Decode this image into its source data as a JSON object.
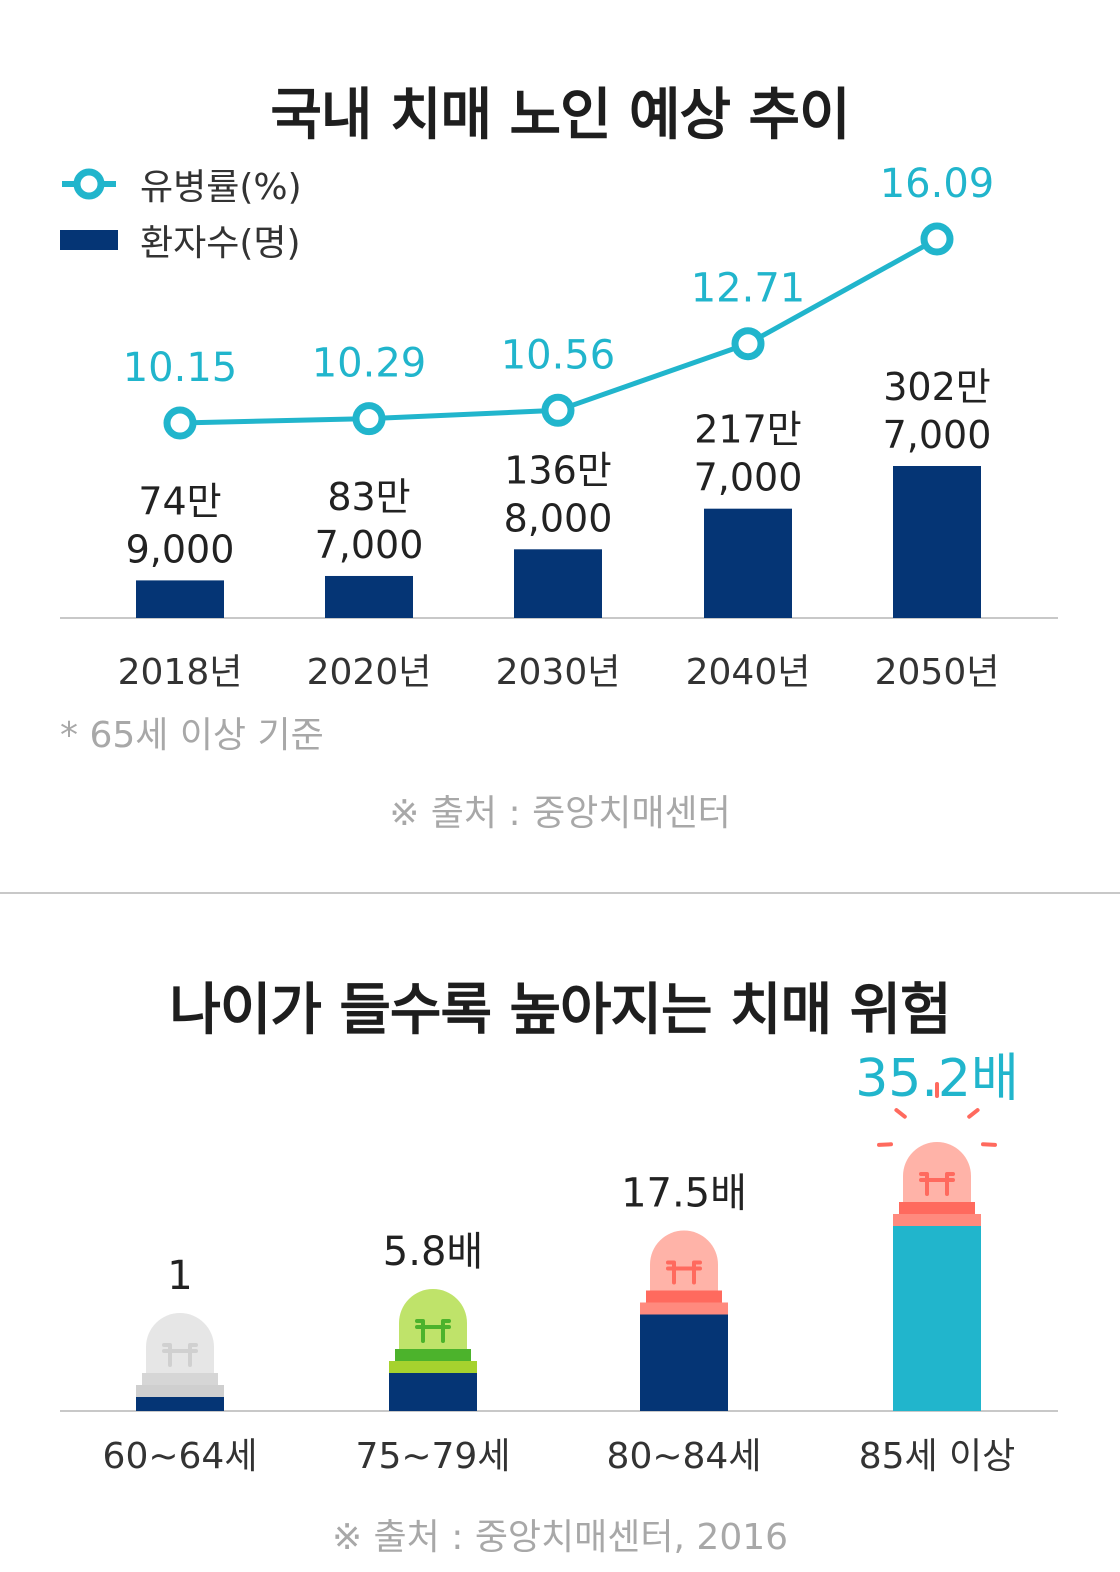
{
  "colors": {
    "line": "#21b5cc",
    "bar": "#053575",
    "accent_bar": "#21b5cc",
    "axis": "#c8c8c8",
    "gray_text": "#a8a8a8",
    "lamp_gray": "#e6e6e6",
    "lamp_green": "#bfe36a",
    "lamp_green_base": "#4cb32c",
    "lamp_red": "#ffb3a8",
    "lamp_red_base": "#ff6a5e"
  },
  "chart1": {
    "title": "국내 치매 노인 예상 추이",
    "note": "* 65세 이상 기준",
    "source": "※ 출처 : 중앙치매센터"
  },
  "chart2": {
    "title": "나이가 들수록 높아지는 치매 위험",
    "source": "※ 출처 : 중앙치매센터, 2016"
  },
  "chart_data": [
    {
      "type": "bar",
      "title": "국내 치매 노인 예상 추이",
      "categories": [
        "2018년",
        "2020년",
        "2030년",
        "2040년",
        "2050년"
      ],
      "series": [
        {
          "name": "환자수(명)",
          "type": "bar",
          "values": [
            749000,
            837000,
            1368000,
            2177000,
            3027000
          ],
          "labels": [
            [
              "74만",
              "9,000"
            ],
            [
              "83만",
              "7,000"
            ],
            [
              "136만",
              "8,000"
            ],
            [
              "217만",
              "7,000"
            ],
            [
              "302만",
              "7,000"
            ]
          ]
        },
        {
          "name": "유병률(%)",
          "type": "line",
          "values": [
            10.15,
            10.29,
            10.56,
            12.71,
            16.09
          ],
          "labels": [
            "10.15",
            "10.29",
            "10.56",
            "12.71",
            "16.09"
          ]
        }
      ],
      "legend_position": "top-left",
      "grid": false
    },
    {
      "type": "bar",
      "title": "나이가 들수록 높아지는 치매 위험",
      "categories": [
        "60~64세",
        "75~79세",
        "80~84세",
        "85세 이상"
      ],
      "values": [
        1,
        5.8,
        17.5,
        35.2
      ],
      "labels": [
        "1",
        "5.8배",
        "17.5배",
        "35.2배"
      ],
      "lamp_icons": [
        "gray-siren-icon",
        "green-siren-icon",
        "red-siren-icon",
        "red-siren-alarm-icon"
      ],
      "grid": false
    }
  ]
}
